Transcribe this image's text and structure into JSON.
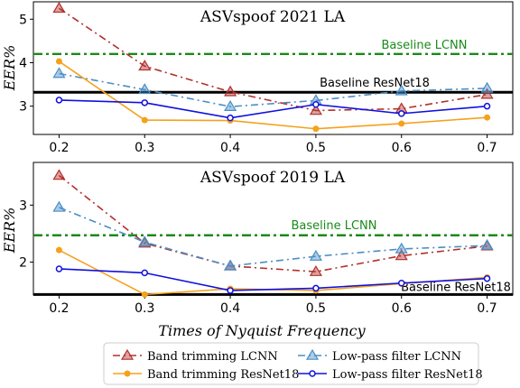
{
  "figure": {
    "xlabel": "Times of Nyquist Frequency"
  },
  "chart_data": [
    {
      "type": "line",
      "title": "ASVspoof 2021 LA",
      "ylabel": "EER%",
      "x": [
        0.2,
        0.3,
        0.4,
        0.5,
        0.6,
        0.7
      ],
      "xticks": [
        "0.2",
        "0.3",
        "0.4",
        "0.5",
        "0.6",
        "0.7"
      ],
      "xlim": [
        0.17,
        0.73
      ],
      "ylim": [
        2.35,
        5.4
      ],
      "yticks": [
        3,
        4,
        5
      ],
      "series": [
        {
          "name": "Band trimming LCNN",
          "values": [
            5.25,
            3.92,
            3.33,
            2.9,
            2.94,
            3.27
          ],
          "color": "#b2302c",
          "dash": "8,4,2,4",
          "marker": "triangle"
        },
        {
          "name": "Low-pass filter LCNN",
          "values": [
            3.75,
            3.38,
            2.99,
            3.13,
            3.35,
            3.41
          ],
          "color": "#4a8ec6",
          "dash": "8,4,2,4",
          "marker": "triangle"
        },
        {
          "name": "Band trimming ResNet18",
          "values": [
            4.03,
            2.68,
            2.67,
            2.48,
            2.6,
            2.74
          ],
          "color": "#f5a11c",
          "dash": "",
          "marker": "circle"
        },
        {
          "name": "Low-pass filter ResNet18",
          "values": [
            3.14,
            3.08,
            2.73,
            3.04,
            2.83,
            3.0
          ],
          "color": "#1010e0",
          "dash": "",
          "marker": "circle-open"
        }
      ],
      "baselines": [
        {
          "label": "Baseline LCNN",
          "value": 4.2,
          "color": "#1a8a1a"
        },
        {
          "label": "Baseline ResNet18",
          "value": 3.32,
          "color": "#000000"
        }
      ]
    },
    {
      "type": "line",
      "title": "ASVspoof 2019 LA",
      "ylabel": "EER%",
      "x": [
        0.2,
        0.3,
        0.4,
        0.5,
        0.6,
        0.7
      ],
      "xticks": [
        "0.2",
        "0.3",
        "0.4",
        "0.5",
        "0.6",
        "0.7"
      ],
      "xlim": [
        0.17,
        0.73
      ],
      "ylim": [
        1.42,
        3.75
      ],
      "yticks": [
        2,
        3
      ],
      "series": [
        {
          "name": "Band trimming LCNN",
          "values": [
            3.52,
            2.33,
            1.93,
            1.83,
            2.11,
            2.28
          ],
          "color": "#b2302c",
          "dash": "8,4,2,4",
          "marker": "triangle"
        },
        {
          "name": "Low-pass filter LCNN",
          "values": [
            2.96,
            2.35,
            1.93,
            2.1,
            2.23,
            2.29
          ],
          "color": "#4a8ec6",
          "dash": "8,4,2,4",
          "marker": "triangle"
        },
        {
          "name": "Band trimming ResNet18",
          "values": [
            2.21,
            1.43,
            1.53,
            1.5,
            1.62,
            1.73
          ],
          "color": "#f5a11c",
          "dash": "",
          "marker": "circle"
        },
        {
          "name": "Low-pass filter ResNet18",
          "values": [
            1.88,
            1.81,
            1.5,
            1.54,
            1.63,
            1.71
          ],
          "color": "#1010e0",
          "dash": "",
          "marker": "circle-open"
        }
      ],
      "baselines": [
        {
          "label": "Baseline LCNN",
          "value": 2.47,
          "color": "#1a8a1a"
        },
        {
          "label": "Baseline ResNet18",
          "value": 1.43,
          "color": "#000000"
        }
      ]
    }
  ],
  "legend": {
    "placement": "bottom-center",
    "items": [
      {
        "label": "Band trimming LCNN",
        "color": "#b2302c",
        "marker": "triangle",
        "dash": "8,4,2,4"
      },
      {
        "label": "Low-pass filter LCNN",
        "color": "#4a8ec6",
        "marker": "triangle",
        "dash": "8,4,2,4"
      },
      {
        "label": "Band trimming ResNet18",
        "color": "#f5a11c",
        "marker": "circle",
        "dash": ""
      },
      {
        "label": "Low-pass filter ResNet18",
        "color": "#1010e0",
        "marker": "circle-open",
        "dash": ""
      }
    ]
  }
}
